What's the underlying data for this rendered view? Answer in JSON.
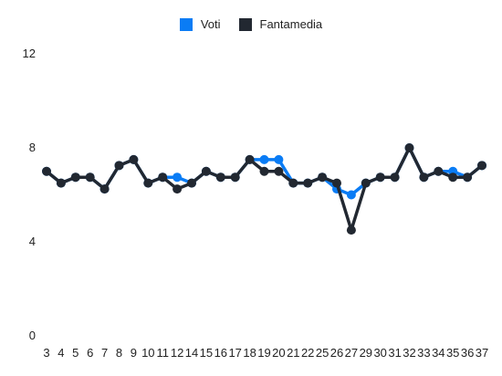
{
  "chart_data": {
    "type": "line",
    "title": "",
    "xlabel": "",
    "ylabel": "",
    "ylim": [
      0,
      12
    ],
    "yticks": [
      "0",
      "4",
      "8",
      "12"
    ],
    "grid": false,
    "legend_position": "top-center",
    "categories": [
      "3",
      "4",
      "5",
      "6",
      "7",
      "8",
      "9",
      "10",
      "11",
      "12",
      "14",
      "15",
      "16",
      "17",
      "18",
      "19",
      "20",
      "21",
      "22",
      "25",
      "26",
      "27",
      "29",
      "30",
      "31",
      "32",
      "33",
      "34",
      "35",
      "36",
      "37"
    ],
    "series": [
      {
        "name": "Voti",
        "color": "#0a7cf5",
        "values": [
          7.0,
          6.5,
          6.75,
          6.75,
          6.25,
          7.25,
          7.5,
          6.5,
          6.75,
          6.75,
          6.5,
          7.0,
          6.75,
          6.75,
          7.5,
          7.5,
          7.5,
          6.5,
          6.5,
          6.75,
          6.25,
          6.0,
          6.5,
          6.75,
          6.75,
          8.0,
          6.75,
          7.0,
          7.0,
          6.75,
          7.25
        ]
      },
      {
        "name": "Fantamedia",
        "color": "#222831",
        "values": [
          7.0,
          6.5,
          6.75,
          6.75,
          6.25,
          7.25,
          7.5,
          6.5,
          6.75,
          6.25,
          6.5,
          7.0,
          6.75,
          6.75,
          7.5,
          7.0,
          7.0,
          6.5,
          6.5,
          6.75,
          6.5,
          4.5,
          6.5,
          6.75,
          6.75,
          8.0,
          6.75,
          7.0,
          6.75,
          6.75,
          7.25
        ]
      }
    ]
  },
  "legend": {
    "voti_label": "Voti",
    "fantamedia_label": "Fantamedia"
  }
}
